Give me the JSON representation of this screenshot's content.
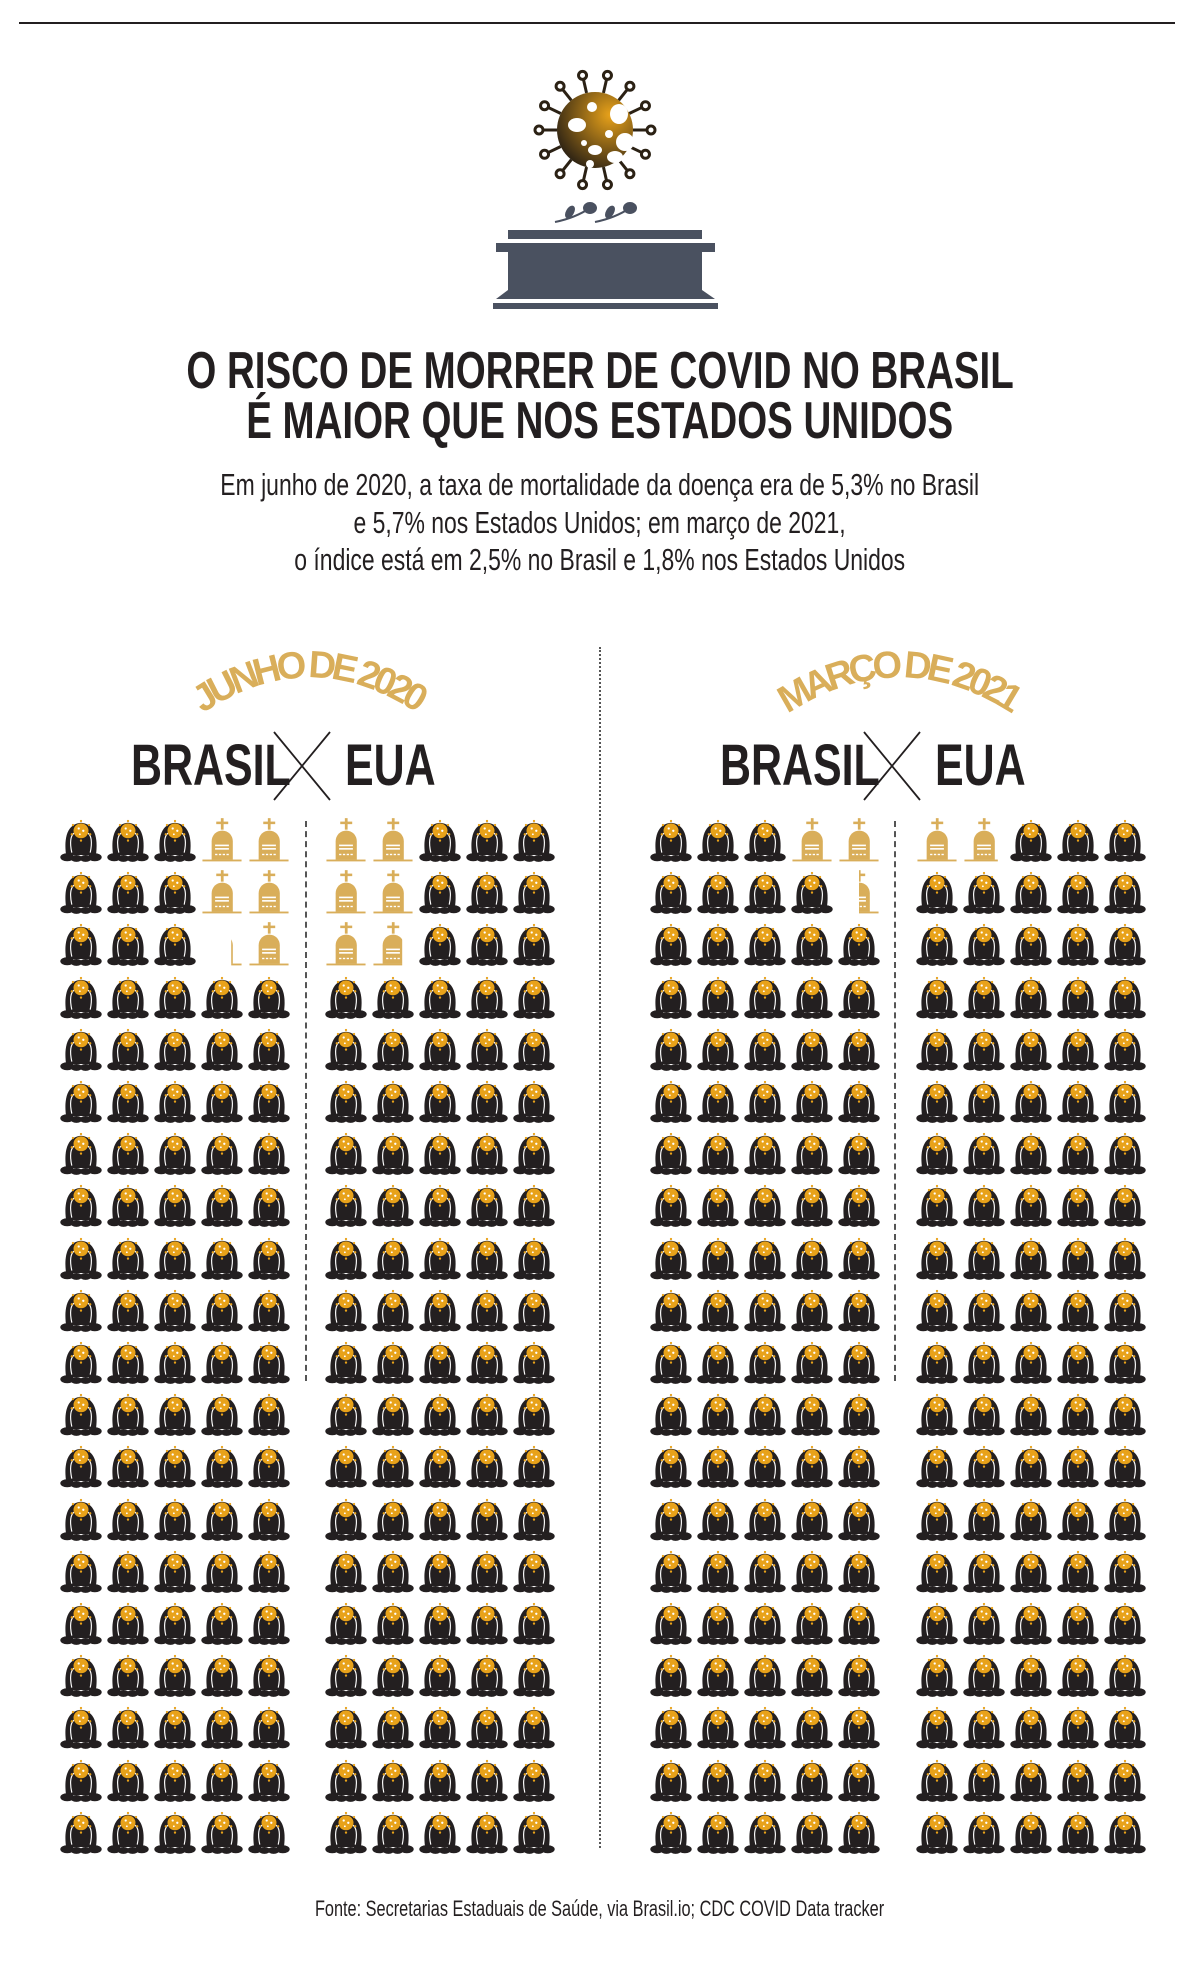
{
  "header": {
    "title_lines": [
      "O RISCO DE MORRER DE COVID NO BRASIL",
      "É MAIOR QUE NOS ESTADOS UNIDOS"
    ],
    "subtitle_lines": [
      "Em junho de 2020, a taxa de mortalidade da doença era de 5,3% no Brasil",
      "e 5,7% nos Estados Unidos; em março de 2021,",
      "o índice está em 2,5% no Brasil e 1,8% nos Estados Unidos"
    ],
    "icon": "virus-over-coffin-icon"
  },
  "colors": {
    "gold": "#d9ae5a",
    "black": "#231f20",
    "virus_orange": "#e8a21a",
    "coffin": "#4a5160"
  },
  "chart_data": {
    "type": "pictogram",
    "unit": "1 icon = 1 person out of 100 infected",
    "people_per_grid": 100,
    "grid_columns": 5,
    "grid_rows": 20,
    "panels": [
      {
        "period": "JUNHO DE 2020",
        "countries": [
          {
            "name": "BRASIL",
            "mortality_pct": 5.3
          },
          {
            "name": "EUA",
            "mortality_pct": 5.7
          }
        ]
      },
      {
        "period": "MARÇO DE 2021",
        "countries": [
          {
            "name": "BRASIL",
            "mortality_pct": 2.5
          },
          {
            "name": "EUA",
            "mortality_pct": 1.8
          }
        ]
      }
    ],
    "legend": {
      "person": "person-with-virus-icon",
      "death": "tombstone-icon"
    }
  },
  "footer": {
    "source": "Fonte: Secretarias Estaduais de Saúde, via Brasil.io; CDC COVID Data tracker"
  }
}
